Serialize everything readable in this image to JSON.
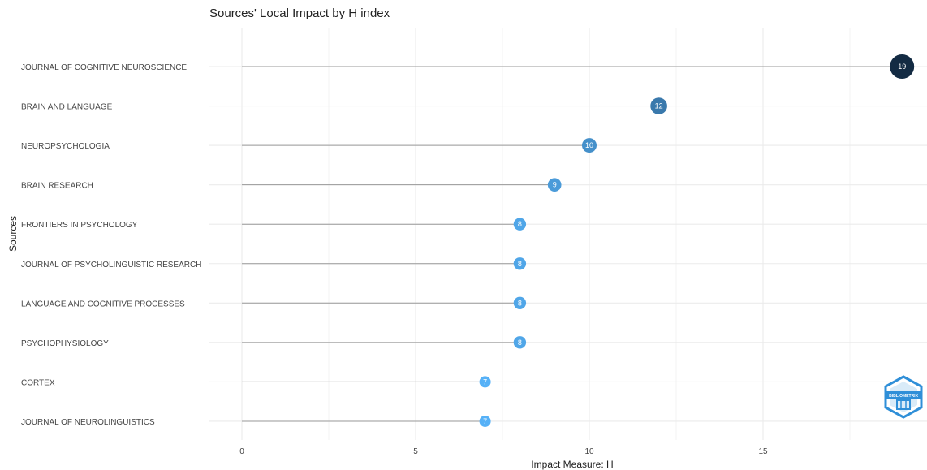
{
  "colors": {
    "grid": "#ebebeb",
    "stem": "#9a9a9a",
    "point_low": "#56b1f7",
    "point_high": "#132b43",
    "point_label": "#ffffff",
    "text": "#222222",
    "tick_text": "#444444",
    "logo_blue": "#2f8fd8"
  },
  "logo": {
    "text": "BIBLIOMETRIX",
    "icon": "bibliometrix-logo-icon"
  },
  "chart_data": {
    "type": "lollipop",
    "orientation": "horizontal",
    "title": "Sources' Local Impact by H index",
    "xlabel": "Impact Measure: H",
    "ylabel": "Sources",
    "xlim": [
      0,
      19.4
    ],
    "x_ticks": [
      0,
      5,
      10,
      15
    ],
    "grid": true,
    "legend": "none",
    "categories": [
      "JOURNAL OF COGNITIVE NEUROSCIENCE",
      "BRAIN AND LANGUAGE",
      "NEUROPSYCHOLOGIA",
      "BRAIN RESEARCH",
      "FRONTIERS IN PSYCHOLOGY",
      "JOURNAL OF PSYCHOLINGUISTIC RESEARCH",
      "LANGUAGE AND COGNITIVE PROCESSES",
      "PSYCHOPHYSIOLOGY",
      "CORTEX",
      "JOURNAL OF NEUROLINGUISTICS"
    ],
    "values": [
      19,
      12,
      10,
      9,
      8,
      8,
      8,
      8,
      7,
      7
    ]
  }
}
